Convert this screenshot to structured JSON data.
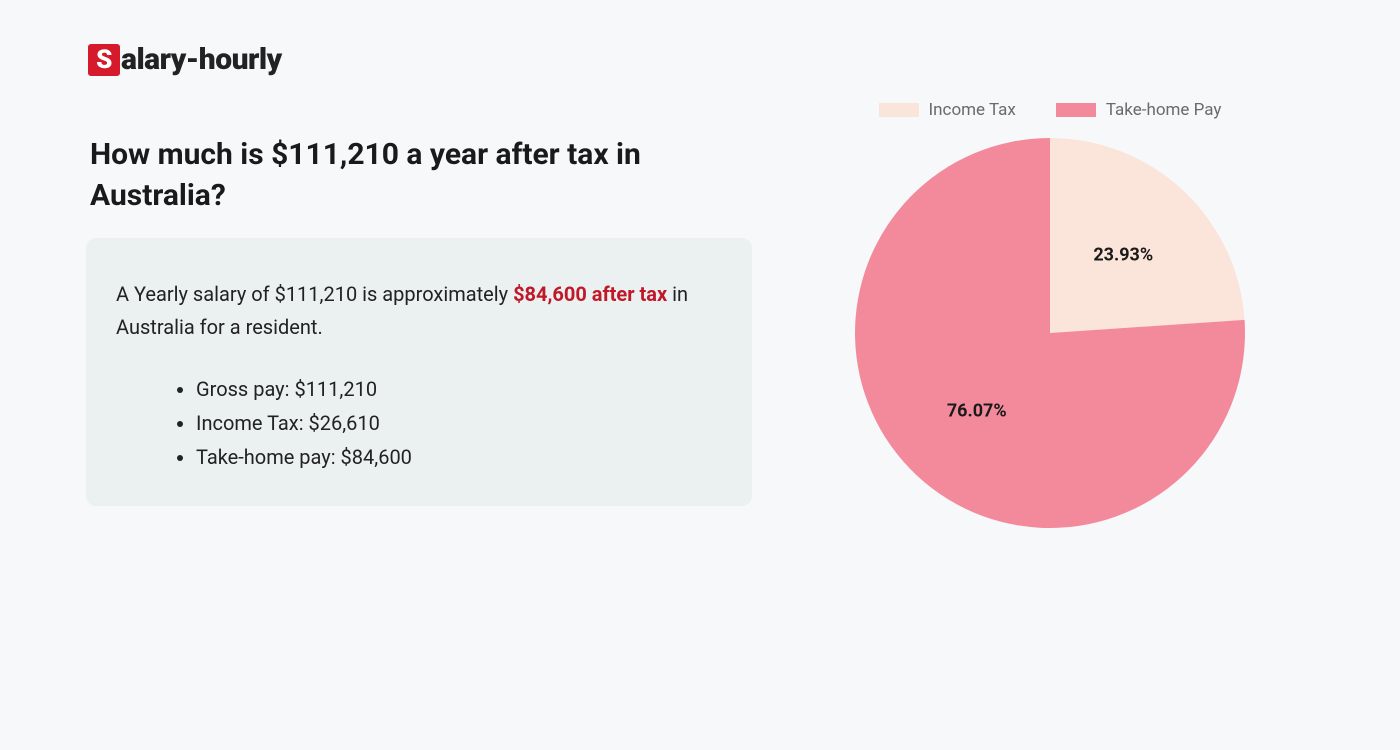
{
  "logo": {
    "s_char": "S",
    "rest": "alary-hourly",
    "s_bg": "#d41a2b",
    "s_fg": "#ffffff"
  },
  "headline": "How much is $111,210 a year after tax in Australia?",
  "summary": {
    "prefix": "A Yearly salary of $111,210 is approximately ",
    "highlight": "$84,600 after tax",
    "suffix": " in Australia for a resident.",
    "highlight_color": "#c01828",
    "box_bg": "#ebf0f0"
  },
  "bullets": [
    "Gross pay: $111,210",
    "Income Tax: $26,610",
    "Take-home pay: $84,600"
  ],
  "chart": {
    "type": "pie",
    "background_color": "#f7f8fa",
    "legend_font_color": "#6a6a6a",
    "legend_fontsize": 17,
    "label_fontsize": 18,
    "label_fontweight": 700,
    "radius": 195,
    "slices": [
      {
        "name": "Income Tax",
        "value": 23.93,
        "label": "23.93%",
        "color": "#fbe4da"
      },
      {
        "name": "Take-home Pay",
        "value": 76.07,
        "label": "76.07%",
        "color": "#f38a9c"
      }
    ]
  },
  "page_bg": "#f7f8fa"
}
